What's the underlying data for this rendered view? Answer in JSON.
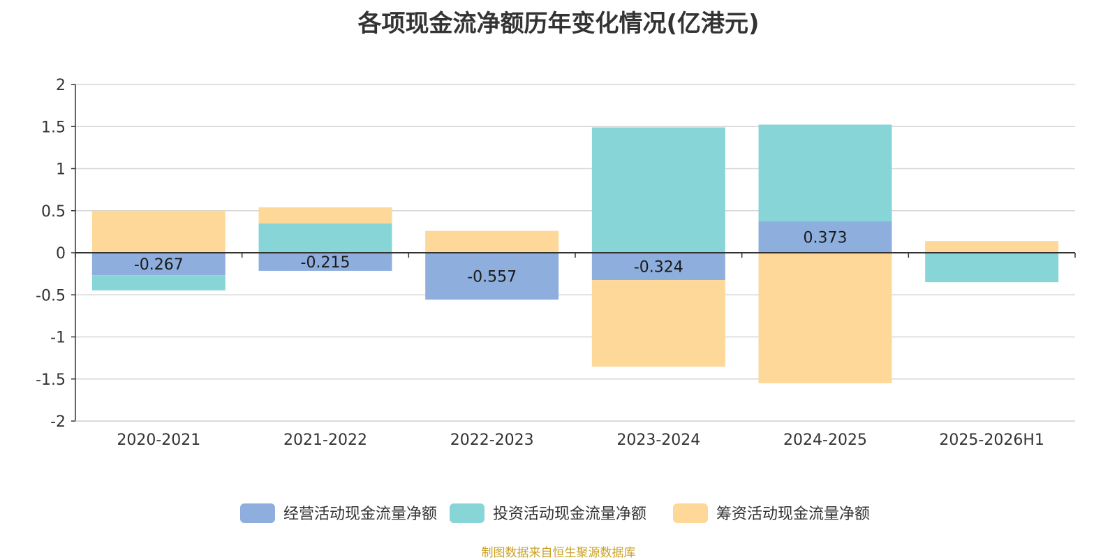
{
  "chart_data": {
    "type": "bar",
    "stacked": true,
    "title": "各项现金流净额历年变化情况(亿港元)",
    "categories": [
      "2020-2021",
      "2021-2022",
      "2022-2023",
      "2023-2024",
      "2024-2025",
      "2025-2026H1"
    ],
    "series": [
      {
        "name": "经营活动现金流量净额",
        "color": "#8eaedd",
        "values": [
          -0.267,
          -0.215,
          -0.557,
          -0.324,
          0.373,
          0.0
        ],
        "labels": [
          "-0.267",
          "-0.215",
          "-0.557",
          "-0.324",
          "0.373",
          ""
        ]
      },
      {
        "name": "投资活动现金流量净额",
        "color": "#88d5d8",
        "values": [
          -0.18,
          0.35,
          0.0,
          1.49,
          1.15,
          -0.35
        ]
      },
      {
        "name": "筹资活动现金流量净额",
        "color": "#fed898",
        "values": [
          0.5,
          0.19,
          0.26,
          -1.03,
          -1.55,
          0.14
        ]
      }
    ],
    "ylim": [
      -2,
      2
    ],
    "yticks": [
      "2",
      "1.5",
      "1",
      "0.5",
      "0",
      "-0.5",
      "-1",
      "-1.5",
      "-2"
    ],
    "ytick_values": [
      2,
      1.5,
      1,
      0.5,
      0,
      -0.5,
      -1,
      -1.5,
      -2
    ],
    "grid": true,
    "legend_position": "bottom-center"
  },
  "source_note": "制图数据来自恒生聚源数据库"
}
